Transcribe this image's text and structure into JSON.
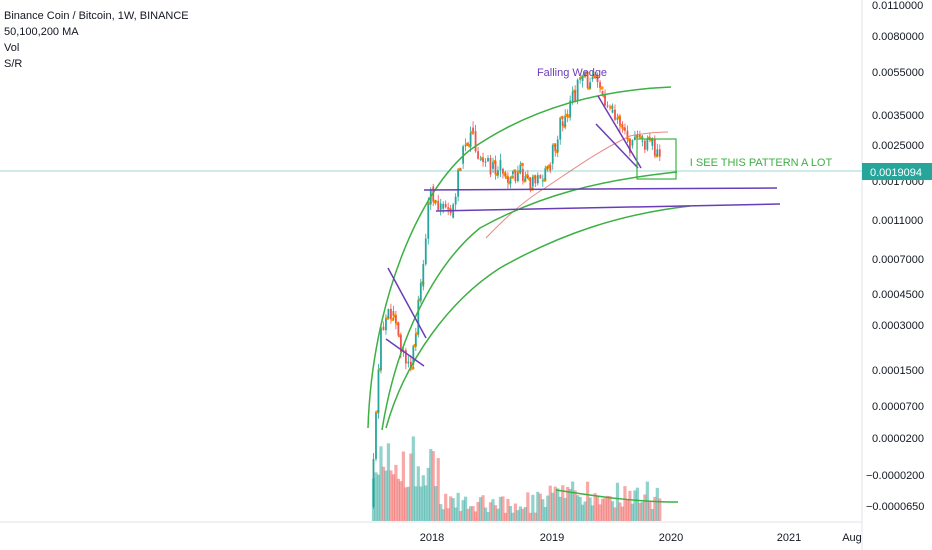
{
  "legend": {
    "symbol": "Binance Coin / Bitcoin, 1W, BINANCE",
    "ma": "50,100,200 MA",
    "vol": "Vol",
    "sr": "S/R"
  },
  "colors": {
    "up": "#26a69a",
    "down": "#ef5350",
    "arc": "#3cb043",
    "wedge": "#6a3db8",
    "ma": "#e57373",
    "price_line": "#26a69a"
  },
  "chart_data": {
    "type": "candlestick",
    "symbol": "BNBBTC",
    "interval": "1W",
    "exchange": "BINANCE",
    "y_axis_scale": "log",
    "y_ticks": [
      "0.0110000",
      "0.0080000",
      "0.0055000",
      "0.0035000",
      "0.0025000",
      "0.0017000",
      "0.0011000",
      "0.0007000",
      "0.0004500",
      "0.0003000",
      "0.0001500",
      "0.0000700",
      "0.0000200",
      "−0.0000200",
      "−0.0000650"
    ],
    "last_price": "0.0019094",
    "x_ticks": [
      "2018",
      "2019",
      "2020",
      "2021",
      "Aug"
    ],
    "annotations": [
      "Falling Wedge",
      "I SEE THIS PATTERN A LOT"
    ],
    "series_close": [
      {
        "date": "2017-07",
        "close": 3e-05
      },
      {
        "date": "2017-08",
        "close": 0.00025
      },
      {
        "date": "2017-09",
        "close": 0.0003
      },
      {
        "date": "2017-10",
        "close": 0.00019
      },
      {
        "date": "2017-11",
        "close": 0.00016
      },
      {
        "date": "2017-12",
        "close": 0.0004
      },
      {
        "date": "2018-01",
        "close": 0.0013
      },
      {
        "date": "2018-02",
        "close": 0.001
      },
      {
        "date": "2018-03",
        "close": 0.0009
      },
      {
        "date": "2018-04",
        "close": 0.0017
      },
      {
        "date": "2018-05",
        "close": 0.0026
      },
      {
        "date": "2018-06",
        "close": 0.0018
      },
      {
        "date": "2018-07",
        "close": 0.0016
      },
      {
        "date": "2018-08",
        "close": 0.0016
      },
      {
        "date": "2018-09",
        "close": 0.0015
      },
      {
        "date": "2018-10",
        "close": 0.0016
      },
      {
        "date": "2018-11",
        "close": 0.0013
      },
      {
        "date": "2018-12",
        "close": 0.0014
      },
      {
        "date": "2019-01",
        "close": 0.0017
      },
      {
        "date": "2019-02",
        "close": 0.0028
      },
      {
        "date": "2019-03",
        "close": 0.0035
      },
      {
        "date": "2019-04",
        "close": 0.0045
      },
      {
        "date": "2019-05",
        "close": 0.0046
      },
      {
        "date": "2019-06",
        "close": 0.004
      },
      {
        "date": "2019-07",
        "close": 0.0031
      },
      {
        "date": "2019-08",
        "close": 0.0026
      },
      {
        "date": "2019-09",
        "close": 0.0021
      },
      {
        "date": "2019-10",
        "close": 0.0022
      },
      {
        "date": "2019-11",
        "close": 0.0021
      },
      {
        "date": "2019-12",
        "close": 0.0019094
      }
    ]
  }
}
